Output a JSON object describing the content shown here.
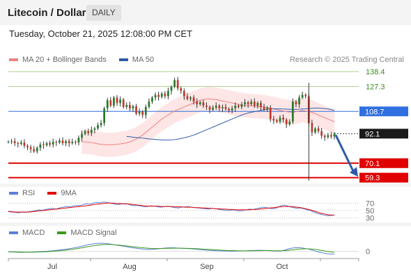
{
  "header": {
    "title": "Litecoin / Dollar",
    "period": "DAILY"
  },
  "datetime": "Tuesday, October 21, 2025 12:08:00 PM CET",
  "credit": "Research © 2025 Trading Central",
  "colors": {
    "ma20": "#f08080",
    "ma50": "#2f5aa8",
    "rsi": "#5b7fd6",
    "rsi_ma": "#e00000",
    "macd": "#5b7fd6",
    "macd_signal": "#3a9a1a",
    "bollinger_fill": "#fde0de",
    "green_level": "#a8d08d",
    "blue_level": "#2f6fe0",
    "red_level": "#e00000",
    "arrow": "#2f5aa8"
  },
  "legends": {
    "main": [
      {
        "label": "MA 20 + Bollinger Bands",
        "color": "#f08080"
      },
      {
        "label": "MA 50",
        "color": "#2f5aa8"
      }
    ],
    "rsi": [
      {
        "label": "RSI",
        "color": "#5b7fd6"
      },
      {
        "label": "9MA",
        "color": "#e00000"
      }
    ],
    "macd": [
      {
        "label": "MACD",
        "color": "#5b7fd6"
      },
      {
        "label": "MACD Signal",
        "color": "#3a9a1a"
      }
    ]
  },
  "chart_data": [
    {
      "type": "candlestick",
      "panel": "price",
      "ylim": [
        56,
        142
      ],
      "x_ticks": [
        "Jul",
        "Aug",
        "Sep",
        "Oct"
      ],
      "levels": [
        {
          "value": 138.4,
          "label": "138.4",
          "kind": "resistance"
        },
        {
          "value": 127.3,
          "label": "127.3",
          "kind": "resistance"
        },
        {
          "value": 108.7,
          "label": "108.7",
          "kind": "pivot"
        },
        {
          "value": 92.1,
          "label": "92.1",
          "kind": "last"
        },
        {
          "value": 70.1,
          "label": "70.1",
          "kind": "support"
        },
        {
          "value": 59.3,
          "label": "59.3",
          "kind": "support"
        }
      ],
      "close": [
        86.0,
        86.5,
        85.0,
        84.5,
        85.5,
        83.0,
        82.0,
        80.5,
        79.0,
        81.5,
        84.0,
        83.5,
        85.0,
        84.0,
        86.0,
        85.5,
        87.0,
        85.0,
        86.5,
        85.0,
        86.0,
        85.5,
        89.0,
        92.0,
        94.0,
        92.5,
        95.0,
        96.0,
        98.5,
        100.0,
        111.0,
        117.0,
        113.0,
        119.0,
        115.0,
        117.5,
        112.0,
        113.5,
        111.0,
        112.5,
        107.0,
        108.5,
        106.0,
        112.0,
        116.0,
        119.0,
        121.0,
        119.5,
        122.0,
        120.0,
        124.0,
        127.0,
        132.0,
        126.0,
        124.0,
        120.0,
        118.0,
        119.0,
        116.0,
        114.0,
        115.5,
        113.0,
        112.0,
        110.0,
        111.5,
        113.0,
        111.0,
        112.0,
        110.5,
        109.5,
        111.0,
        113.0,
        112.0,
        114.0,
        115.5,
        114.0,
        116.0,
        113.0,
        115.0,
        112.0,
        110.0,
        111.5,
        103.0,
        102.0,
        101.0,
        104.0,
        102.5,
        99.0,
        101.0,
        116.0,
        114.0,
        119.0,
        121.0,
        120.0,
        100.0,
        93.0,
        96.0,
        94.0,
        90.5,
        89.5,
        91.0,
        90.0,
        92.1
      ],
      "ma20": [
        86.0,
        86.0,
        85.8,
        85.5,
        85.0,
        84.5,
        84.2,
        84.0,
        83.8,
        83.8,
        84.0,
        84.2,
        84.5,
        84.8,
        85.2,
        86.0,
        87.0,
        88.0,
        89.5,
        91.0,
        93.0,
        95.0,
        97.0,
        99.0,
        101.0,
        103.0,
        104.5,
        106.0,
        107.5,
        109.0,
        110.0,
        111.0,
        112.0,
        113.0,
        114.0,
        115.0,
        116.0,
        117.0,
        117.5,
        118.0,
        118.0,
        117.8,
        117.5,
        117.0,
        116.5,
        116.0,
        115.5,
        115.0,
        114.5,
        114.0,
        113.5,
        113.2,
        113.0,
        112.8,
        112.6,
        112.4,
        112.2,
        112.0,
        111.5,
        111.0,
        110.5,
        110.0,
        109.5,
        109.0,
        108.5,
        108.2,
        108.0,
        108.5,
        109.0,
        109.5,
        109.0,
        108.5,
        108.0,
        107.0,
        106.0,
        105.0,
        104.0,
        103.0,
        102.0,
        101.0
      ],
      "ma50": [
        90.0,
        89.8,
        89.5,
        89.2,
        89.0,
        88.8,
        88.5,
        88.2,
        88.0,
        87.8,
        87.6,
        87.5,
        87.4,
        87.4,
        87.5,
        87.7,
        88.0,
        88.5,
        89.0,
        89.6,
        90.3,
        91.0,
        92.0,
        93.0,
        94.0,
        95.0,
        96.0,
        97.0,
        98.0,
        99.0,
        100.0,
        101.0,
        102.0,
        103.0,
        104.0,
        105.0,
        106.0,
        106.8,
        107.5,
        108.0,
        108.5,
        109.0,
        109.5,
        110.0,
        110.3,
        110.5,
        110.6,
        110.6,
        110.5,
        110.5,
        110.4,
        110.3,
        110.2,
        110.2,
        110.3,
        110.5,
        110.6,
        110.8,
        111.0,
        111.2,
        111.2,
        111.0,
        110.8,
        110.5,
        110.0,
        109.5
      ]
    },
    {
      "type": "line",
      "panel": "rsi",
      "ylim": [
        22,
        78
      ],
      "y_ticks": [
        70,
        50,
        30
      ],
      "series": [
        {
          "name": "RSI",
          "values": [
            47,
            46,
            45,
            44,
            46,
            45,
            47,
            48,
            50,
            52,
            51,
            53,
            55,
            56,
            54,
            57,
            59,
            61,
            60,
            62,
            64,
            63,
            66,
            68,
            67,
            70,
            72,
            71,
            73,
            72,
            70,
            68,
            66,
            67,
            69,
            68,
            65,
            63,
            64,
            62,
            60,
            61,
            63,
            62,
            60,
            59,
            61,
            62,
            60,
            58,
            57,
            59,
            60,
            61,
            59,
            58,
            57,
            56,
            55,
            54,
            56,
            55,
            53,
            52,
            51,
            50,
            52,
            51,
            49,
            50,
            52,
            54,
            53,
            55,
            57,
            59,
            58,
            56,
            55,
            57,
            62,
            65,
            63,
            60,
            58,
            56,
            57,
            55,
            52,
            50,
            46,
            42,
            40,
            38,
            36,
            37,
            38
          ]
        },
        {
          "name": "9MA",
          "values": [
            48,
            47,
            46,
            46,
            46,
            46,
            46,
            47,
            48,
            49,
            50,
            51,
            52,
            53,
            54,
            55,
            56,
            57,
            58,
            59,
            60,
            61,
            62,
            63,
            64,
            66,
            67,
            68,
            69,
            70,
            70,
            70,
            69,
            69,
            68,
            68,
            67,
            66,
            65,
            64,
            63,
            62,
            62,
            62,
            62,
            61,
            61,
            61,
            61,
            60,
            60,
            60,
            59,
            59,
            59,
            58,
            58,
            57,
            57,
            56,
            56,
            55,
            55,
            54,
            54,
            53,
            53,
            52,
            52,
            52,
            52,
            52,
            53,
            53,
            54,
            55,
            56,
            57,
            58,
            59,
            60,
            61,
            61,
            61,
            60,
            59,
            58,
            56,
            54,
            52,
            49,
            46,
            43,
            41,
            39,
            38,
            38
          ]
        }
      ]
    },
    {
      "type": "line",
      "panel": "macd",
      "ylim": [
        -6,
        12
      ],
      "y_ticks": [
        0
      ],
      "series": [
        {
          "name": "MACD",
          "values": [
            -0.5,
            -0.6,
            -0.8,
            -1.0,
            -1.1,
            -1.0,
            -0.9,
            -0.8,
            -0.6,
            -0.4,
            -0.2,
            0.0,
            0.3,
            0.6,
            1.0,
            1.4,
            1.8,
            2.2,
            2.8,
            3.4,
            4.0,
            4.8,
            5.6,
            6.4,
            7.2,
            7.8,
            8.2,
            8.4,
            8.3,
            8.0,
            7.6,
            7.0,
            6.4,
            5.8,
            5.2,
            4.6,
            4.0,
            3.5,
            3.0,
            2.6,
            2.2,
            2.0,
            2.0,
            2.2,
            2.6,
            3.0,
            3.4,
            3.6,
            3.7,
            3.6,
            3.4,
            3.2,
            3.0,
            2.8,
            2.6,
            2.3,
            2.0,
            1.7,
            1.4,
            1.1,
            0.9,
            0.7,
            0.5,
            0.4,
            0.3,
            0.2,
            0.2,
            0.3,
            0.4,
            0.5,
            0.6,
            0.8,
            0.9,
            1.0,
            1.1,
            1.0,
            0.9,
            0.7,
            0.5,
            0.3,
            0.2,
            1.0,
            2.0,
            3.0,
            3.6,
            3.8,
            3.7,
            3.3,
            2.6,
            1.8,
            0.8,
            -0.3,
            -1.2,
            -2.0,
            -2.6,
            -2.8,
            -2.9
          ]
        },
        {
          "name": "MACD Signal",
          "values": [
            -0.4,
            -0.5,
            -0.6,
            -0.7,
            -0.8,
            -0.9,
            -0.9,
            -0.9,
            -0.8,
            -0.7,
            -0.6,
            -0.4,
            -0.2,
            0.0,
            0.3,
            0.6,
            0.9,
            1.3,
            1.7,
            2.2,
            2.7,
            3.3,
            3.9,
            4.6,
            5.2,
            5.8,
            6.3,
            6.7,
            7.0,
            7.1,
            7.1,
            6.9,
            6.6,
            6.3,
            5.9,
            5.5,
            5.1,
            4.7,
            4.3,
            3.9,
            3.6,
            3.3,
            3.0,
            2.9,
            2.9,
            3.0,
            3.1,
            3.2,
            3.3,
            3.3,
            3.3,
            3.3,
            3.2,
            3.1,
            3.0,
            2.8,
            2.6,
            2.4,
            2.2,
            2.0,
            1.8,
            1.6,
            1.4,
            1.2,
            1.0,
            0.9,
            0.8,
            0.7,
            0.6,
            0.6,
            0.6,
            0.6,
            0.6,
            0.7,
            0.7,
            0.8,
            0.8,
            0.8,
            0.7,
            0.7,
            0.6,
            0.7,
            0.9,
            1.3,
            1.7,
            2.1,
            2.4,
            2.6,
            2.6,
            2.5,
            2.2,
            1.7,
            1.1,
            0.5,
            -0.1,
            -0.6,
            -1.0
          ]
        }
      ]
    }
  ]
}
